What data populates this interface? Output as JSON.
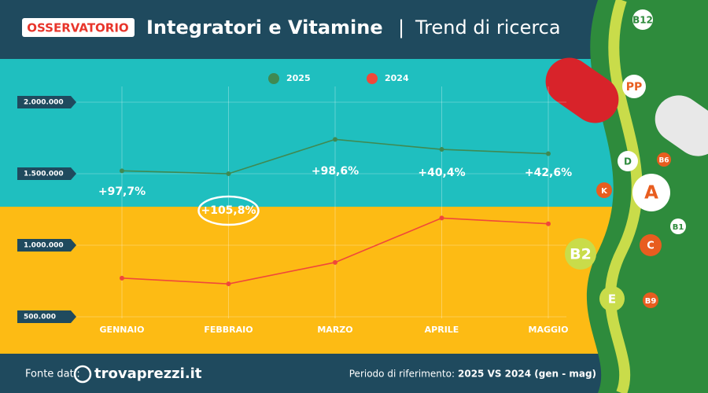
{
  "header": {
    "badge": "OSSERVATORIO",
    "title": "Integratori e Vitamine",
    "separator": "|",
    "subtitle": "Trend di ricerca"
  },
  "footer": {
    "source_label": "Fonte dati:",
    "source": "trovaprezzi.it",
    "period_label": "Periodo di riferimento:",
    "period": "2025 VS 2024 (gen - mag)"
  },
  "illustration": {
    "vitamins": [
      "B12",
      "PP",
      "D",
      "B6",
      "A",
      "K",
      "B1",
      "C",
      "B2",
      "E",
      "B9"
    ]
  },
  "chart_data": {
    "type": "line",
    "categories": [
      "GENNAIO",
      "FEBBRAIO",
      "MARZO",
      "APRILE",
      "MAGGIO"
    ],
    "series": [
      {
        "name": "2025",
        "color": "#3f8a52",
        "values": [
          1520000,
          1500000,
          1740000,
          1670000,
          1640000
        ]
      },
      {
        "name": "2024",
        "color": "#f0483a",
        "values": [
          770000,
          730000,
          880000,
          1190000,
          1150000
        ]
      }
    ],
    "annotations": [
      "+97,7%",
      "+105,8%",
      "+98,6%",
      "+40,4%",
      "+42,6%"
    ],
    "ylim": [
      500000,
      2000000
    ],
    "yticks": [
      {
        "value": 500000,
        "label": "500.000"
      },
      {
        "value": 1000000,
        "label": "1.000.000"
      },
      {
        "value": 1500000,
        "label": "1.500.000"
      },
      {
        "value": 2000000,
        "label": "2.000.000"
      }
    ],
    "grid": true
  }
}
